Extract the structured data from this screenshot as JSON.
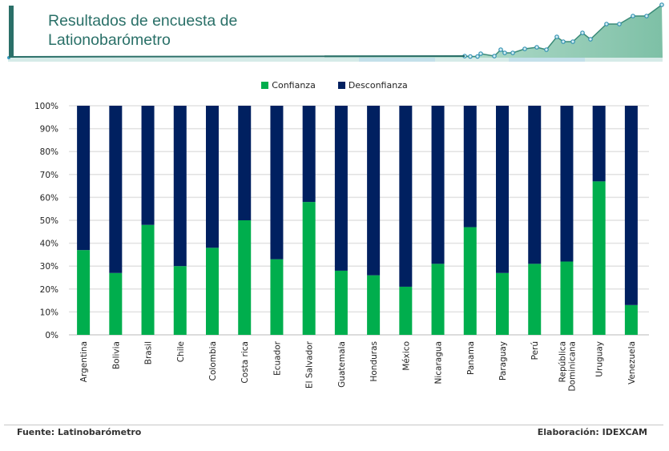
{
  "header": {
    "title_line1": "Resultados de encuesta de",
    "title_line2": "Lationobarómetro"
  },
  "colors": {
    "confianza": "#00ae4d",
    "desconfianza": "#002060",
    "title": "#2a7068",
    "accent": "#2a6f68"
  },
  "chart_data": {
    "type": "bar",
    "stacked": true,
    "title": "",
    "xlabel": "",
    "ylabel": "",
    "ylim": [
      0,
      100
    ],
    "yticks": [
      "0%",
      "10%",
      "20%",
      "30%",
      "40%",
      "50%",
      "60%",
      "70%",
      "80%",
      "90%",
      "100%"
    ],
    "grid": true,
    "legend_position": "top-center",
    "categories": [
      "Argentina",
      "Bolivia",
      "Brasil",
      "Chile",
      "Colombia",
      "Costa rica",
      "Ecuador",
      "El Salvador",
      "Guatemala",
      "Honduras",
      "México",
      "Nicaragua",
      "Panama",
      "Paraguay",
      "Perú",
      "República Dominicana",
      "Uruguay",
      "Venezuela"
    ],
    "series": [
      {
        "name": "Confianza",
        "values": [
          37,
          27,
          48,
          30,
          38,
          50,
          33,
          58,
          28,
          26,
          21,
          31,
          47,
          27,
          31,
          32,
          67,
          13
        ]
      },
      {
        "name": "Desconfianza",
        "values": [
          63,
          73,
          52,
          70,
          62,
          50,
          67,
          42,
          72,
          74,
          79,
          69,
          53,
          73,
          69,
          68,
          33,
          87
        ]
      }
    ]
  },
  "footer": {
    "source": "Fuente:  Latinobarómetro",
    "credit": "Elaboración: IDEXCAM"
  }
}
